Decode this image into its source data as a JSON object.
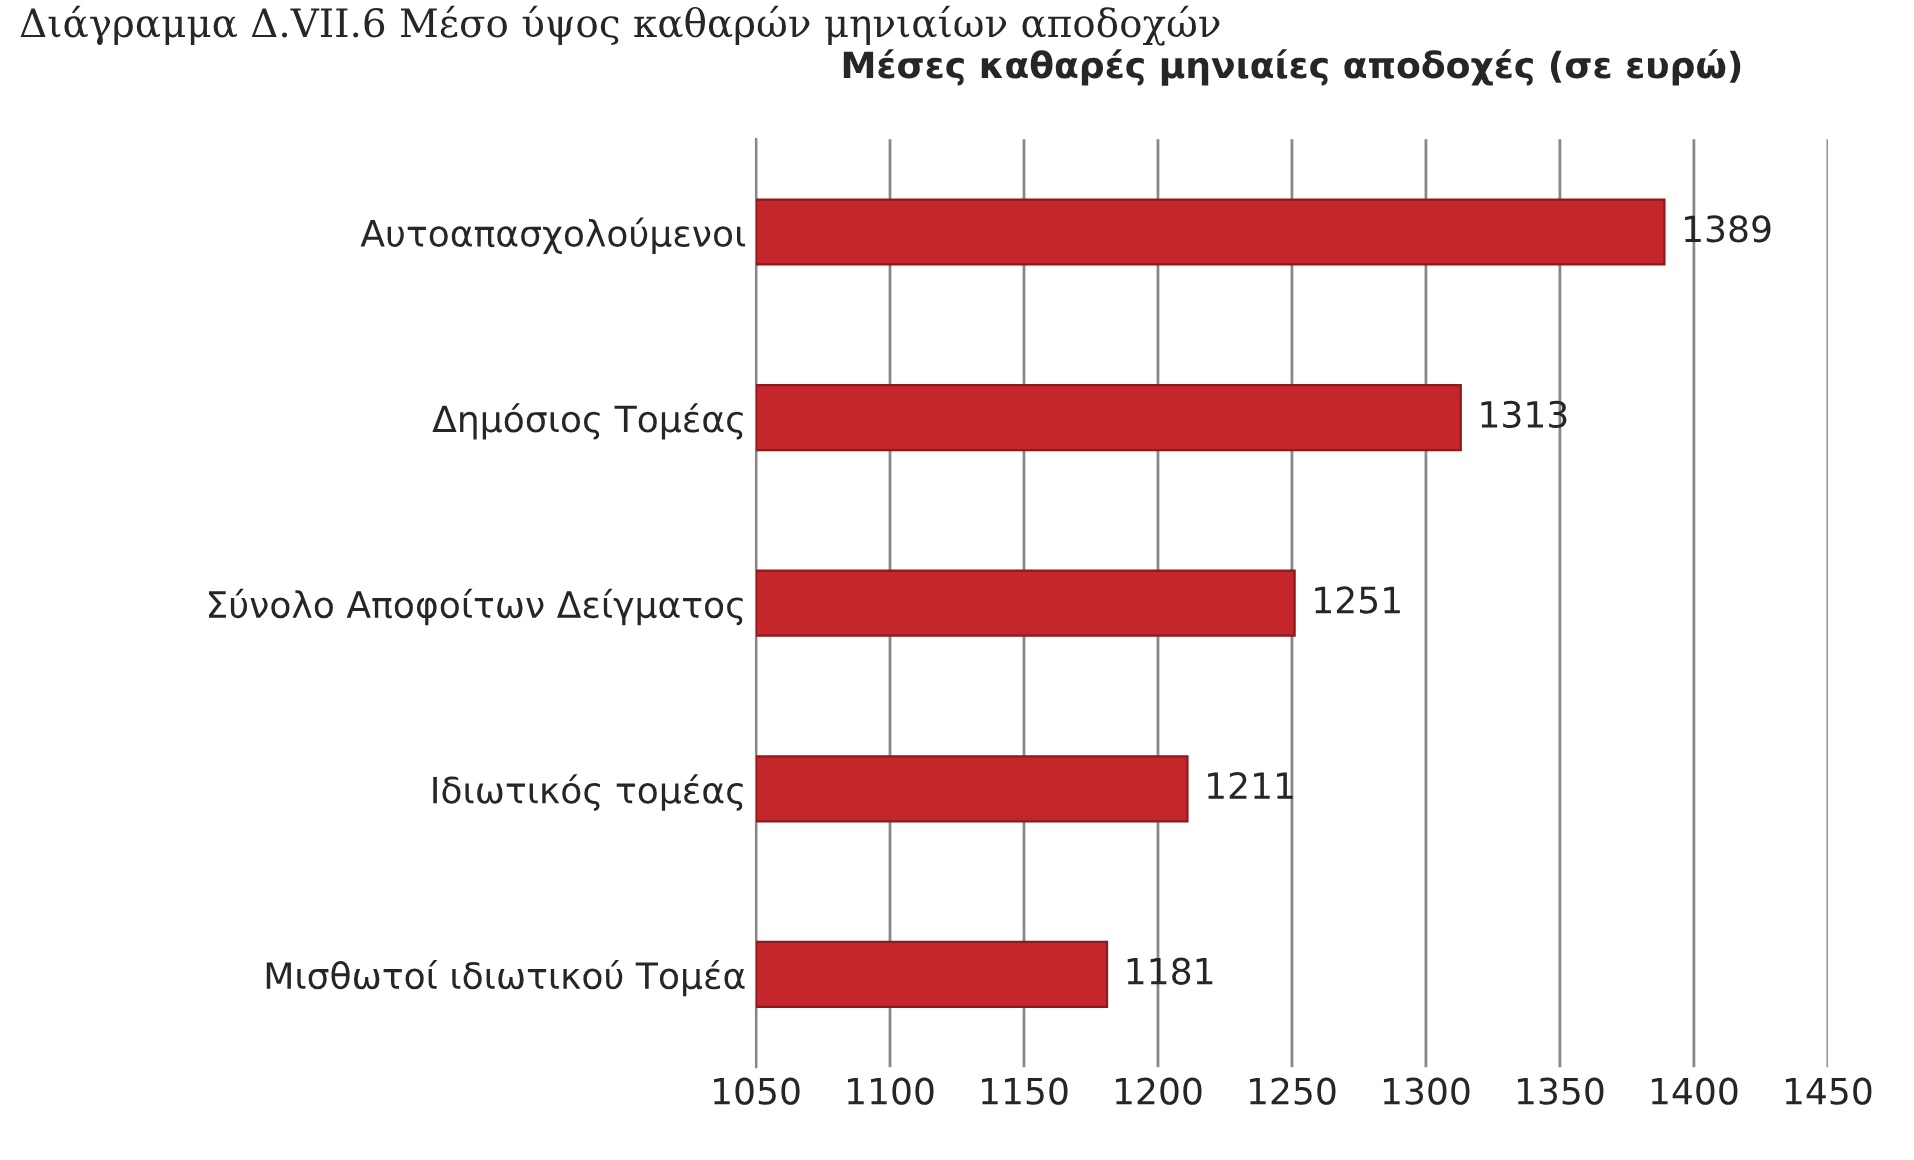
{
  "chart_data": {
    "type": "bar",
    "orientation": "horizontal",
    "title": "Μέσες καθαρές μηνιαίες αποδοχές (σε ευρώ)",
    "annotations": [
      "Διάγραμμα Δ.VII.6 Μέσο ύψος καθαρών μηνιαίων αποδοχών"
    ],
    "categories": [
      "Αυτοαπασχολούμενοι",
      "Δημόσιος Τομέας",
      "Σύνολο Αποφοίτων Δείγματος",
      "Ιδιωτικός τομέας",
      "Μισθωτοί ιδιωτικού Τομέα"
    ],
    "values": [
      1389,
      1313,
      1251,
      1211,
      1181
    ],
    "color": "#c4262b",
    "xlim": [
      1050,
      1450
    ],
    "xticks": [
      1050,
      1100,
      1150,
      1200,
      1250,
      1300,
      1350,
      1400,
      1450
    ],
    "grid": "x",
    "data_labels": true
  }
}
